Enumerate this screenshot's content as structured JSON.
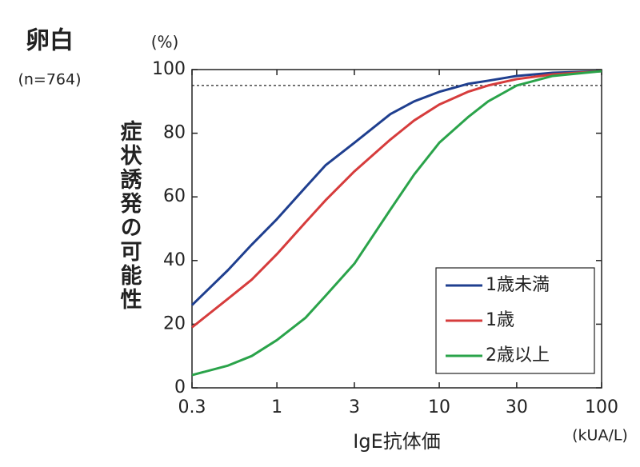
{
  "chart_data": {
    "type": "line",
    "title": "卵白",
    "subtitle": "(n=764)",
    "y_unit": "(%)",
    "y_label": "症状誘発の可能性",
    "x_label": "IgE抗体価",
    "x_unit": "(kUA/L)",
    "xscale": "log",
    "x": [
      0.3,
      0.5,
      0.7,
      1,
      1.5,
      2,
      3,
      5,
      7,
      10,
      15,
      20,
      30,
      50,
      100
    ],
    "series": [
      {
        "name": "1歳未満",
        "color": "#1f3f8f",
        "values": [
          26,
          37,
          45,
          53,
          63,
          70,
          77,
          86,
          90,
          93,
          95.5,
          96.5,
          98,
          99,
          99.5
        ]
      },
      {
        "name": "1歳",
        "color": "#d63c3c",
        "values": [
          19,
          28,
          34,
          42,
          52,
          59,
          68,
          78,
          84,
          89,
          93,
          95,
          97,
          98.5,
          99.5
        ]
      },
      {
        "name": "2歳以上",
        "color": "#2aa34a",
        "values": [
          4,
          7,
          10,
          15,
          22,
          29,
          39,
          56,
          67,
          77,
          85,
          90,
          95,
          98,
          99.5
        ]
      }
    ],
    "reference_line": 95,
    "xlim": [
      0.3,
      100
    ],
    "xticks": [
      0.3,
      1,
      3,
      10,
      30,
      100
    ],
    "ylim": [
      0,
      100
    ],
    "yticks": [
      0,
      20,
      40,
      60,
      80,
      100
    ],
    "legend": "lower right"
  }
}
